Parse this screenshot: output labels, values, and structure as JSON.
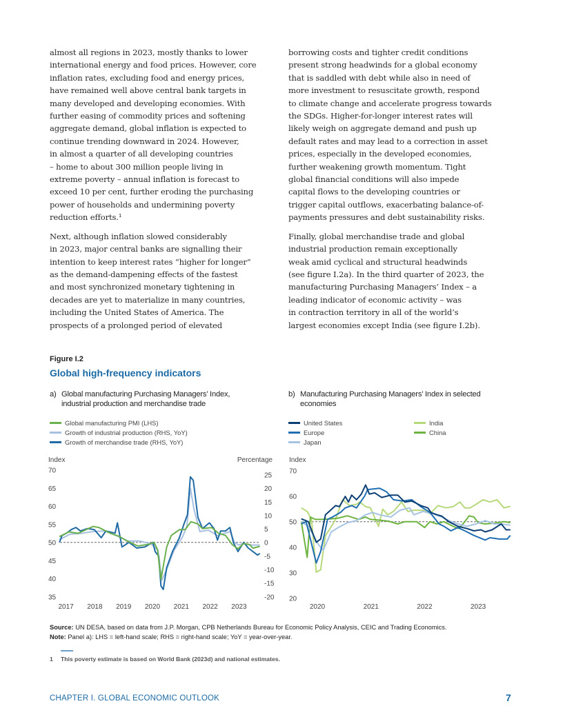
{
  "body_text": {
    "left_column": [
      [
        "almost all regions in 2023, mostly thanks to lower",
        "international energy and food prices. However, core",
        "inflation rates, excluding food and energy prices,",
        "have remained well above central bank targets in",
        "many developed and developing economies. With",
        "further easing of commodity prices and softening",
        "aggregate demand, global inflation is expected to",
        "continue trending downward in 2024. However,",
        "in almost a quarter of all developing countries",
        "– home to about 300 million people living in",
        "extreme poverty – annual inflation is forecast to",
        "exceed 10 per cent, further eroding the purchasing",
        "power of households and undermining poverty",
        "reduction efforts.¹"
      ],
      [
        "Next, although inflation slowed considerably",
        "in 2023, major central banks are signalling their",
        "intention to keep interest rates “higher for longer”",
        "as the demand-dampening effects of the fastest",
        "and most synchronized monetary tightening in",
        "decades are yet to materialize in many countries,",
        "including the United States of America. The",
        "prospects of a prolonged period of elevated"
      ]
    ],
    "right_column": [
      [
        "borrowing costs and tighter credit conditions",
        "present strong headwinds for a global economy",
        "that is saddled with debt while also in need of",
        "more investment to resuscitate growth, respond",
        "to climate change and accelerate progress towards",
        "the SDGs. Higher-for-longer interest rates will",
        "likely weigh on aggregate demand and push up",
        "default rates and may lead to a correction in asset",
        "prices, especially in the developed economies,",
        "further weakening growth momentum. Tight",
        "global financial conditions will also impede",
        "capital flows to the developing countries or",
        "trigger capital outflows, exacerbating balance-of-",
        "payments pressures and debt sustainability risks."
      ],
      [
        "Finally, global merchandise trade and global",
        "industrial production remain exceptionally",
        "weak amid cyclical and structural headwinds",
        "(see figure I.2a). In the third quarter of 2023, the",
        "manufacturing Purchasing Managers’ Index – a",
        "leading indicator of economic activity – was",
        "in contraction territory in all of the world’s",
        "largest economies except India (see figure I.2b)."
      ]
    ]
  },
  "figure": {
    "label": "Figure I.2",
    "title": "Global high-frequency indicators",
    "panel_a": {
      "letter": "a)",
      "title": "Global manufacturing Purchasing Managers’ Index, industrial production and merchandise trade"
    },
    "panel_b": {
      "letter": "b)",
      "title": "Manufacturing Purchasing Managers’ Index in selected economies"
    }
  },
  "chart_data": [
    {
      "type": "line",
      "title": "Global manufacturing Purchasing Managers’ Index, industrial production and merchandise trade",
      "ylabel_left": "Index",
      "ylabel_right": "Percentage",
      "ylim_left": [
        35,
        70
      ],
      "ylim_right": [
        -20,
        25
      ],
      "yticks_left": [
        "70",
        "65",
        "60",
        "55",
        "50",
        "45",
        "40",
        "35"
      ],
      "yticks_right": [
        "25",
        "20",
        "15",
        "10",
        "5",
        "0",
        "-5",
        "-10",
        "-15",
        "-20"
      ],
      "xticks": [
        "2017",
        "2018",
        "2019",
        "2020",
        "2021",
        "2022",
        "2023"
      ],
      "xlim": [
        2016.62,
        2023.6
      ],
      "reference_line": {
        "axis": "left",
        "value": 50,
        "style": "dashed"
      },
      "legend_placement": "top-left",
      "series": [
        {
          "name": "Global manufacturing PMI (LHS)",
          "axis": "left",
          "color": "#6ab04c",
          "x": [
            2016.63,
            2016.96,
            2017.28,
            2017.8,
            2018.0,
            2018.4,
            2018.72,
            2018.95,
            2019.35,
            2019.75,
            2019.91,
            2020.03,
            2020.15,
            2020.35,
            2020.51,
            2020.79,
            2020.99,
            2021.19,
            2021.43,
            2021.59,
            2021.91,
            2022.15,
            2022.39,
            2022.62,
            2022.82,
            2023.02,
            2023.22,
            2023.34,
            2023.58
          ],
          "y": [
            51.6,
            52.9,
            52.5,
            54.4,
            54.1,
            52.5,
            51.6,
            50.5,
            49.0,
            49.5,
            50.0,
            48.0,
            39.8,
            48.7,
            51.9,
            53.5,
            53.5,
            55.7,
            55.1,
            53.8,
            54.1,
            52.5,
            51.9,
            49.4,
            48.2,
            49.7,
            49.4,
            48.4,
            48.9
          ]
        },
        {
          "name": "Growth of industrial production (RHS, YoY)",
          "axis": "right",
          "color": "#a8c0e0",
          "x": [
            2016.63,
            2017.0,
            2017.4,
            2017.8,
            2018.2,
            2018.6,
            2019.0,
            2019.4,
            2019.8,
            2020.05,
            2020.18,
            2020.35,
            2020.6,
            2020.9,
            2021.05,
            2021.17,
            2021.3,
            2021.5,
            2021.8,
            2022.1,
            2022.4,
            2022.55,
            2022.7,
            2022.85,
            2023.0,
            2023.3,
            2023.58
          ],
          "y": [
            1,
            3,
            3.3,
            4,
            4.2,
            2.5,
            0.5,
            0.5,
            -0.5,
            -3,
            -14,
            -10,
            -3,
            2,
            6,
            20,
            12,
            4,
            4.5,
            2.5,
            3.5,
            4,
            0,
            -1,
            -0.5,
            -1,
            -1
          ]
        },
        {
          "name": "Growth of merchandise trade (RHS, YoY)",
          "axis": "right",
          "color": "#1f6aa5",
          "x": [
            2016.63,
            2016.72,
            2016.88,
            2017.04,
            2017.2,
            2017.36,
            2017.6,
            2017.84,
            2018.08,
            2018.24,
            2018.56,
            2018.64,
            2018.8,
            2019.04,
            2019.31,
            2019.59,
            2019.87,
            2019.95,
            2020.07,
            2020.15,
            2020.23,
            2020.35,
            2020.55,
            2020.79,
            2020.95,
            2021.07,
            2021.17,
            2021.27,
            2021.43,
            2021.59,
            2021.83,
            2021.99,
            2022.11,
            2022.22,
            2022.39,
            2022.54,
            2022.66,
            2022.82,
            2023.02,
            2023.18,
            2023.34,
            2023.5,
            2023.58
          ],
          "y": [
            0,
            2.5,
            3.4,
            4.7,
            5.5,
            4.2,
            5.1,
            4.7,
            1.7,
            4.2,
            3.4,
            7.2,
            -1.7,
            0,
            -2.1,
            -1.7,
            0,
            -3.4,
            -5.1,
            -16.1,
            -17.4,
            -9.3,
            -3.4,
            1.7,
            6.8,
            10.2,
            24.2,
            22.9,
            9.3,
            5.1,
            7.2,
            5.1,
            0.8,
            4.2,
            4.2,
            5.5,
            0,
            -3.4,
            0,
            -2.1,
            -3.4,
            -4.7,
            -4.1
          ]
        }
      ]
    },
    {
      "type": "line",
      "title": "Manufacturing Purchasing Managers’ Index in selected economies",
      "ylabel": "Index",
      "ylim": [
        20,
        70
      ],
      "yticks": [
        "70",
        "60",
        "50",
        "40",
        "30",
        "20"
      ],
      "xticks": [
        "2020",
        "2021",
        "2022",
        "2023"
      ],
      "xlim": [
        2019.7,
        2023.6
      ],
      "reference_line": {
        "value": 50,
        "style": "dashed"
      },
      "legend_placement": "top",
      "series": [
        {
          "name": "United States",
          "color": "#0b3f73",
          "x": [
            2019.7,
            2019.83,
            2019.98,
            2020.06,
            2020.15,
            2020.34,
            2020.41,
            2020.52,
            2020.58,
            2020.64,
            2020.73,
            2020.82,
            2020.9,
            2020.97,
            2021.07,
            2021.2,
            2021.37,
            2021.5,
            2021.63,
            2021.76,
            2021.93,
            2022.06,
            2022.12,
            2022.23,
            2022.32,
            2022.45,
            2022.62,
            2022.79,
            2022.92,
            2023.05,
            2023.13,
            2023.26,
            2023.43,
            2023.52,
            2023.6
          ],
          "y": [
            51.1,
            50.0,
            41.9,
            43.2,
            52.7,
            56.3,
            55.9,
            59.9,
            57.7,
            60.4,
            58.6,
            60.8,
            64.4,
            60.8,
            61.3,
            59.5,
            60.4,
            60.4,
            57.7,
            58.1,
            56.3,
            55.4,
            53.6,
            52.7,
            52.2,
            50.0,
            48.2,
            47.3,
            46.4,
            46.8,
            46.0,
            46.8,
            49.1,
            46.8,
            46.8
          ]
        },
        {
          "name": "Europe",
          "color": "#1f6fb2",
          "x": [
            2019.7,
            2019.79,
            2019.98,
            2020.06,
            2020.19,
            2020.28,
            2020.43,
            2020.52,
            2020.64,
            2020.73,
            2020.88,
            2020.94,
            2021.16,
            2021.29,
            2021.42,
            2021.59,
            2021.76,
            2021.93,
            2022.1,
            2022.27,
            2022.36,
            2022.49,
            2022.62,
            2022.75,
            2022.92,
            2023.13,
            2023.22,
            2023.39,
            2023.54,
            2023.6
          ],
          "y": [
            49.1,
            50.0,
            33.8,
            38.3,
            50.9,
            51.8,
            53.6,
            55.4,
            56.3,
            55.4,
            60.0,
            62.6,
            63.1,
            61.7,
            58.6,
            58.1,
            58.6,
            55.9,
            53.6,
            49.1,
            48.2,
            46.4,
            47.7,
            46.4,
            44.6,
            42.8,
            43.7,
            43.2,
            43.2,
            44.6
          ]
        },
        {
          "name": "Japan",
          "color": "#a7c3e3",
          "x": [
            2019.7,
            2019.83,
            2020.02,
            2020.11,
            2020.26,
            2020.39,
            2020.56,
            2020.73,
            2020.9,
            2021.03,
            2021.16,
            2021.37,
            2021.54,
            2021.72,
            2021.8,
            2021.97,
            2022.15,
            2022.32,
            2022.45,
            2022.62,
            2022.79,
            2022.96,
            2023.13,
            2023.3,
            2023.43,
            2023.6
          ],
          "y": [
            50.0,
            48.2,
            41.0,
            38.8,
            46.0,
            47.7,
            49.6,
            50.4,
            52.7,
            53.6,
            52.7,
            51.8,
            54.5,
            55.4,
            52.7,
            54.0,
            53.1,
            51.8,
            50.4,
            49.1,
            48.2,
            49.1,
            50.4,
            49.1,
            49.1,
            48.6
          ]
        },
        {
          "name": "India",
          "color": "#b7d87a",
          "x": [
            2019.7,
            2019.81,
            2019.89,
            2019.98,
            2020.06,
            2020.15,
            2020.21,
            2020.34,
            2020.47,
            2020.6,
            2020.73,
            2020.79,
            2020.9,
            2020.99,
            2021.14,
            2021.22,
            2021.31,
            2021.42,
            2021.57,
            2021.69,
            2021.8,
            2021.97,
            2022.1,
            2022.25,
            2022.4,
            2022.53,
            2022.66,
            2022.75,
            2022.85,
            2022.96,
            2023.09,
            2023.22,
            2023.35,
            2023.48,
            2023.6
          ],
          "y": [
            55.4,
            54.0,
            50.9,
            30.2,
            31.1,
            44.6,
            46.4,
            50.9,
            58.6,
            56.3,
            56.8,
            57.7,
            55.9,
            55.4,
            48.2,
            54.9,
            52.7,
            54.0,
            57.7,
            54.0,
            54.5,
            54.5,
            53.1,
            56.3,
            55.4,
            55.9,
            57.7,
            55.4,
            55.4,
            56.8,
            58.6,
            57.7,
            58.6,
            55.4,
            56.0
          ]
        },
        {
          "name": "China",
          "color": "#6db33f",
          "x": [
            2019.7,
            2019.81,
            2019.87,
            2019.96,
            2020.09,
            2020.26,
            2020.39,
            2020.56,
            2020.77,
            2020.9,
            2020.99,
            2021.16,
            2021.33,
            2021.5,
            2021.63,
            2021.85,
            2022.0,
            2022.1,
            2022.23,
            2022.36,
            2022.53,
            2022.64,
            2022.75,
            2022.83,
            2022.92,
            2023.0,
            2023.13,
            2023.3,
            2023.48,
            2023.6
          ],
          "y": [
            50.0,
            36.0,
            51.8,
            50.9,
            50.9,
            51.1,
            51.4,
            52.3,
            50.9,
            51.8,
            50.9,
            50.6,
            50.2,
            49.1,
            50.0,
            50.0,
            47.7,
            50.0,
            49.1,
            50.0,
            48.2,
            47.3,
            50.0,
            52.3,
            51.8,
            49.6,
            49.1,
            49.4,
            50.0,
            49.6
          ]
        }
      ]
    }
  ],
  "notes": {
    "source_label": "Source:",
    "source_text": " UN DESA, based on data from J.P. Morgan, CPB Netherlands Bureau for Economic Policy Analysis, CEIC and Trading Economics.",
    "note_label": "Note:",
    "note_text": " Panel a): LHS = left-hand scale; RHS = right-hand scale; YoY = year-over-year."
  },
  "footnote": {
    "number": "1",
    "text": "This poverty estimate is based on World Bank (2023d) and national estimates."
  },
  "footer": {
    "chapter": "CHAPTER I. GLOBAL ECONOMIC OUTLOOK",
    "page_number": "7"
  }
}
